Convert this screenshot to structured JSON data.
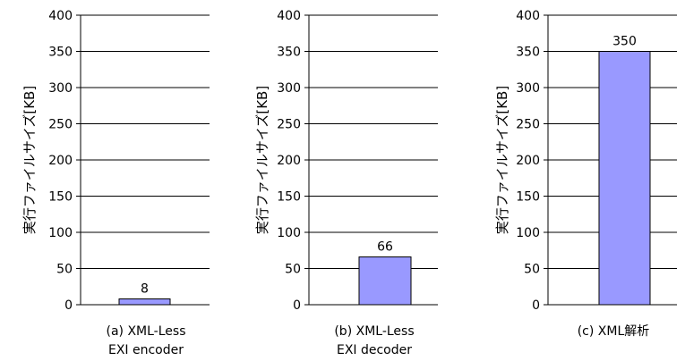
{
  "chart_data": [
    {
      "type": "bar",
      "categories": [
        "(a) XML-Less\nEXI encoder"
      ],
      "values": [
        8
      ],
      "data_labels": [
        "8"
      ],
      "title": "",
      "xlabel": "",
      "ylabel": "実行ファイルサイズ[KB]",
      "ylim": [
        0,
        400
      ],
      "yticks": [
        0,
        50,
        100,
        150,
        200,
        250,
        300,
        350,
        400
      ],
      "grid": "horizontal",
      "bar_color": "#9999ff"
    },
    {
      "type": "bar",
      "categories": [
        "(b) XML-Less\nEXI decoder"
      ],
      "values": [
        66
      ],
      "data_labels": [
        "66"
      ],
      "title": "",
      "xlabel": "",
      "ylabel": "実行ファイルサイズ[KB]",
      "ylim": [
        0,
        400
      ],
      "yticks": [
        0,
        50,
        100,
        150,
        200,
        250,
        300,
        350,
        400
      ],
      "grid": "horizontal",
      "bar_color": "#9999ff"
    },
    {
      "type": "bar",
      "categories": [
        "(c) XML解析"
      ],
      "values": [
        350
      ],
      "data_labels": [
        "350"
      ],
      "title": "",
      "xlabel": "",
      "ylabel": "実行ファイルサイズ[KB]",
      "ylim": [
        0,
        400
      ],
      "yticks": [
        0,
        50,
        100,
        150,
        200,
        250,
        300,
        350,
        400
      ],
      "grid": "horizontal",
      "bar_color": "#9999ff"
    }
  ]
}
